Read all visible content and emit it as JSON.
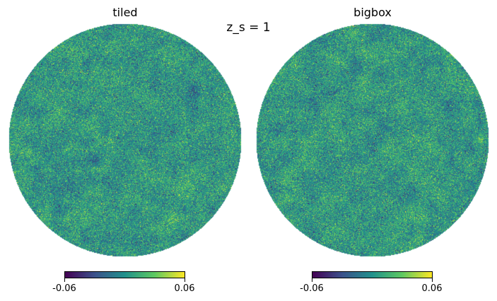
{
  "suptitle": "z_s = 1",
  "panels": [
    {
      "title": "tiled",
      "colorbar": {
        "min_label": "-0.06",
        "max_label": "0.06",
        "vmin": -0.06,
        "vmax": 0.06,
        "colormap": "viridis"
      }
    },
    {
      "title": "bigbox",
      "colorbar": {
        "min_label": "-0.06",
        "max_label": "0.06",
        "vmin": -0.06,
        "vmax": 0.06,
        "colormap": "viridis"
      }
    }
  ],
  "colors": {
    "viridis": [
      "#440154",
      "#3b528b",
      "#21918c",
      "#5ec962",
      "#fde725"
    ]
  }
}
